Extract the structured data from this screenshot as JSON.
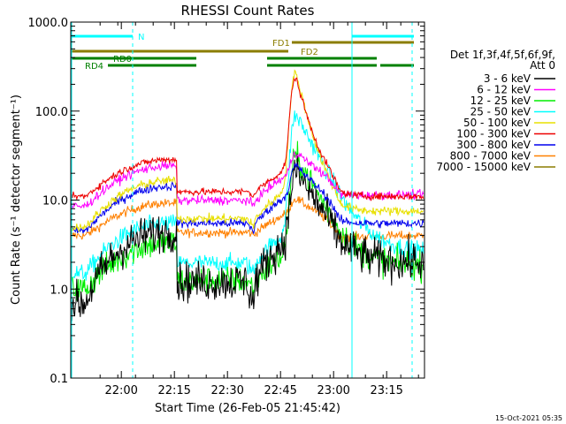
{
  "chart_data": {
    "type": "line",
    "title": "RHESSI Count Rates",
    "xlabel": "Start Time (26-Feb-05 21:45:42)",
    "ylabel": "Count Rate (s⁻¹ detector segment⁻¹)",
    "yscale": "log",
    "ylim": [
      0.1,
      1000
    ],
    "xlim_minutes_after_start": [
      0,
      100
    ],
    "x_ticks": [
      {
        "t": 14.3,
        "label": "22:00"
      },
      {
        "t": 29.3,
        "label": "22:15"
      },
      {
        "t": 44.3,
        "label": "22:30"
      },
      {
        "t": 59.3,
        "label": "22:45"
      },
      {
        "t": 74.3,
        "label": "23:00"
      },
      {
        "t": 89.3,
        "label": "23:15"
      }
    ],
    "y_ticks": [
      {
        "v": 0.1,
        "label": "0.1"
      },
      {
        "v": 1,
        "label": "1.0"
      },
      {
        "v": 10,
        "label": "10.0"
      },
      {
        "v": 100,
        "label": "100.0"
      },
      {
        "v": 1000,
        "label": "1000.0"
      }
    ],
    "legend_title": [
      "Det 1f,3f,4f,5f,6f,9f,",
      "Att 0"
    ],
    "series": [
      {
        "name": "3 - 6 keV",
        "color": "#000000",
        "base": 2.0,
        "night": 0.7,
        "peak": 22,
        "decay": 2.0,
        "noise": 0.22
      },
      {
        "name": "6 - 12 keV",
        "color": "#ff00ff",
        "base": 11,
        "night": 8.5,
        "peak": 35,
        "decay": 11.5,
        "noise": 0.05
      },
      {
        "name": "12 - 25 keV",
        "color": "#00ee00",
        "base": 1.5,
        "night": 1.0,
        "peak": 32,
        "decay": 1.8,
        "noise": 0.16
      },
      {
        "name": "25 - 50 keV",
        "color": "#00ffff",
        "base": 2.5,
        "night": 1.5,
        "peak": 95,
        "decay": 2.6,
        "noise": 0.1
      },
      {
        "name": "50 - 100 keV",
        "color": "#e8e000",
        "base": 7.5,
        "night": 5.0,
        "peak": 285,
        "decay": 7.5,
        "noise": 0.05
      },
      {
        "name": "100 - 300 keV",
        "color": "#ee0000",
        "base": 13,
        "night": 11,
        "peak": 255,
        "decay": 11,
        "noise": 0.04
      },
      {
        "name": "300 - 800 keV",
        "color": "#0000ee",
        "base": 6.5,
        "night": 4.5,
        "peak": 25,
        "decay": 5.5,
        "noise": 0.05
      },
      {
        "name": "800 - 7000 keV",
        "color": "#ff8000",
        "base": 4.2,
        "night": 4.0,
        "peak": 10.5,
        "decay": 4.0,
        "noise": 0.05
      },
      {
        "name": "7000 - 15000 keV",
        "color": "#8b7d00",
        "base": null,
        "night": null,
        "peak": null,
        "decay": null,
        "noise": 0
      }
    ],
    "flare_peak_minute": 63.5,
    "vertical_markers_minutes": [
      17.5,
      79.5,
      96.5
    ],
    "attenuator_or_decimation_bars": [
      {
        "label": "N",
        "color": "#00ffff",
        "segments": [
          [
            0,
            17.5
          ],
          [
            79.5,
            97
          ]
        ],
        "label_at": 19
      },
      {
        "label": "FD1",
        "color": "#8b7d00",
        "segments": [
          [
            62.5,
            97
          ]
        ],
        "label_at": 57
      },
      {
        "label": "FD2",
        "color": "#8b7d00",
        "segments": [
          [
            0,
            61.5
          ]
        ],
        "label_at": 65
      },
      {
        "label": "RD0",
        "color": "#008000",
        "segments": [
          [
            0,
            35.5
          ],
          [
            55.5,
            86.5
          ]
        ],
        "label_at": 12
      },
      {
        "label": "RD4",
        "color": "#008000",
        "segments": [
          [
            10.5,
            35.5
          ],
          [
            55.5,
            86.5
          ],
          [
            87.5,
            97
          ]
        ],
        "label_at": 4
      }
    ]
  },
  "footer_date": "15-Oct-2021 05:35"
}
